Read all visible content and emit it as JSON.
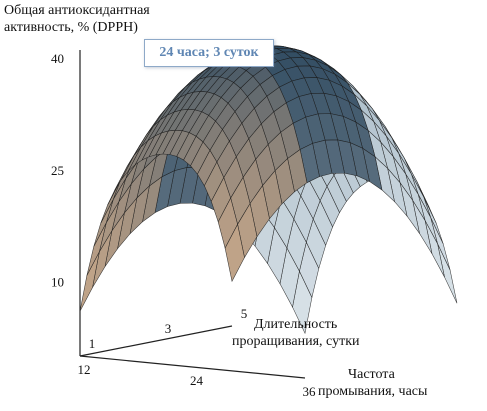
{
  "chart_data": {
    "type": "surface-3d",
    "zlabel_lines": [
      "Общая антиоксидантная",
      "активность, % (DPPH)"
    ],
    "ylabel_lines": [
      "Длительность",
      "проращивания, сутки"
    ],
    "xlabel_lines": [
      "Частота",
      "промывания, часы"
    ],
    "z_ticks": [
      "10",
      "25",
      "40"
    ],
    "y_ticks": [
      "1",
      "3",
      "5"
    ],
    "x_ticks": [
      "12",
      "24",
      "36"
    ],
    "annotation": "24 часа; 3 суток",
    "x_range": [
      12,
      36
    ],
    "y_range": [
      1,
      5
    ],
    "z_range": [
      5,
      41
    ],
    "surface_values": [
      [
        6,
        22,
        25,
        22,
        6
      ],
      [
        22,
        38,
        41,
        38,
        22
      ],
      [
        6,
        22,
        25,
        22,
        6
      ]
    ],
    "surface_colors": {
      "front": "#c6a78a",
      "top": "#2f4a60",
      "back": "#dfe7ec",
      "mesh": "#1b1b1b"
    }
  }
}
